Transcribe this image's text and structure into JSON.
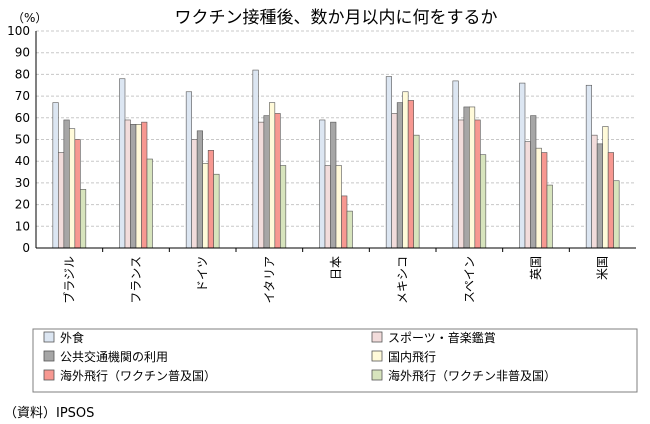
{
  "chart_data": {
    "type": "bar",
    "title": "ワクチン接種後、数か月以内に何をするか",
    "yunit": "（%）",
    "ylim": [
      0,
      100
    ],
    "yticks": [
      0,
      10,
      20,
      30,
      40,
      50,
      60,
      70,
      80,
      90,
      100
    ],
    "grid": true,
    "legend_position": "bottom",
    "categories": [
      "ブラジル",
      "フランス",
      "ドイツ",
      "イタリア",
      "日本",
      "メキシコ",
      "スペイン",
      "英国",
      "米国"
    ],
    "series": [
      {
        "name": "外食",
        "color": "#dce6f2",
        "values": [
          67,
          78,
          72,
          82,
          59,
          79,
          77,
          76,
          75
        ]
      },
      {
        "name": "スポーツ・音楽鑑賞",
        "color": "#f2dcdb",
        "values": [
          44,
          59,
          50,
          58,
          38,
          62,
          59,
          49,
          52
        ]
      },
      {
        "name": "公共交通機関の利用",
        "color": "#a6a6a6",
        "values": [
          59,
          57,
          54,
          61,
          58,
          67,
          65,
          61,
          48
        ]
      },
      {
        "name": "国内飛行",
        "color": "#fffad9",
        "values": [
          55,
          57,
          39,
          67,
          38,
          72,
          65,
          46,
          56
        ]
      },
      {
        "name": "海外飛行（ワクチン普及国）",
        "color": "#f79891",
        "values": [
          50,
          58,
          45,
          62,
          24,
          68,
          59,
          44,
          44
        ]
      },
      {
        "name": "海外飛行（ワクチン非普及国）",
        "color": "#d7e4bd",
        "values": [
          27,
          41,
          34,
          38,
          17,
          52,
          43,
          29,
          31
        ]
      }
    ]
  },
  "source": "（資料）IPSOS"
}
